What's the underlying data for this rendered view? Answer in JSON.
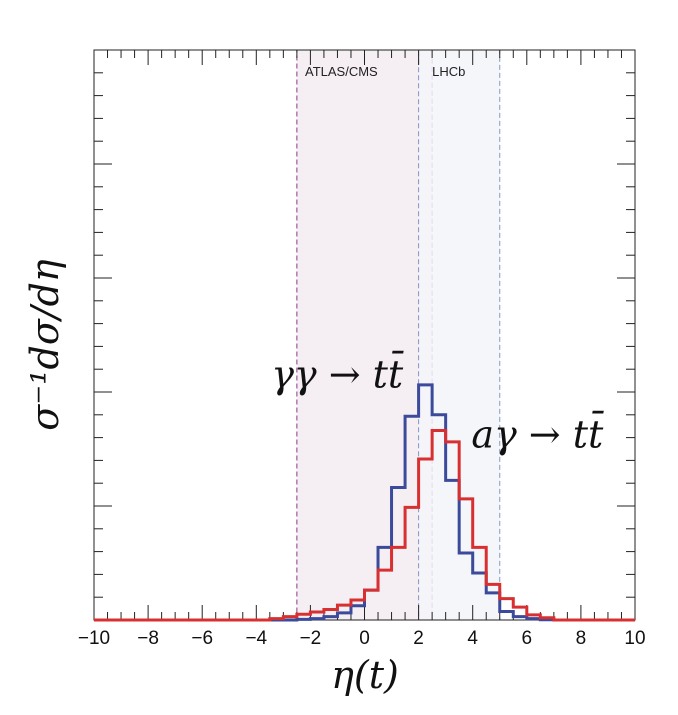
{
  "chart_data": {
    "type": "histogram",
    "title": "",
    "xlabel": "η(t)",
    "ylabel": "σ⁻¹dσ/dη",
    "xlim": [
      -10,
      10
    ],
    "ylim": [
      0,
      0.2
    ],
    "x_ticks": [
      -10,
      -8,
      -6,
      -4,
      -2,
      0,
      2,
      4,
      6,
      8,
      10
    ],
    "x_tick_labels": [
      "−10",
      "−8",
      "−6",
      "−4",
      "−2",
      "0",
      "2",
      "4",
      "6",
      "8",
      "10"
    ],
    "bin_edges": [
      -10,
      -3.5,
      -3,
      -2.5,
      -2,
      -1.5,
      -1,
      -0.5,
      0,
      0.5,
      1,
      1.5,
      2,
      2.5,
      3,
      3.5,
      4,
      4.5,
      5,
      5.5,
      6,
      6.5,
      7,
      10
    ],
    "series": [
      {
        "name": "γγ → tt̄",
        "color": "#3b4a9a",
        "values": [
          0,
          0,
          0,
          0.0002,
          0.0005,
          0.0012,
          0.0025,
          0.005,
          0.0105,
          0.0255,
          0.0465,
          0.0715,
          0.0825,
          0.072,
          0.049,
          0.0235,
          0.0165,
          0.0095,
          0.003,
          0.0012,
          0.0005,
          0.0001,
          0
        ]
      },
      {
        "name": "aγ → tt̄",
        "color": "#d83030",
        "values": [
          0,
          0.0005,
          0.0012,
          0.002,
          0.0028,
          0.0037,
          0.0052,
          0.007,
          0.0105,
          0.0175,
          0.0255,
          0.0395,
          0.0565,
          0.0665,
          0.0625,
          0.0425,
          0.0255,
          0.0125,
          0.0075,
          0.0045,
          0.0018,
          0.0008,
          0
        ]
      }
    ],
    "regions": [
      {
        "name": "ATLAS/CMS",
        "range": [
          -2.5,
          2.5
        ],
        "fill": "#f5eef3",
        "stroke": "#8a3a88"
      },
      {
        "name": "LHCb",
        "range": [
          2,
          5
        ],
        "fill": "#f3f4f9",
        "stroke": "#7f9ac4"
      }
    ],
    "annotations": {
      "gg": {
        "text": "γγ → tt̄",
        "x": 0.1,
        "y": 0.0815
      },
      "ag": {
        "text": "aγ → tt̄",
        "x": 3.95,
        "y": 0.0605
      }
    }
  }
}
